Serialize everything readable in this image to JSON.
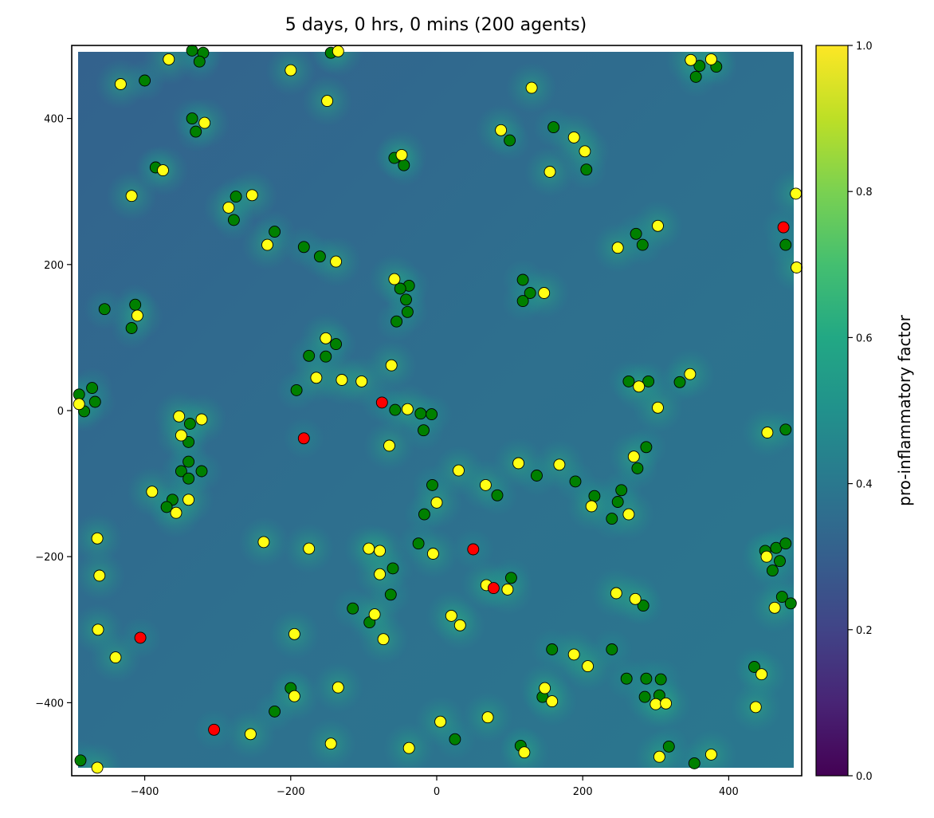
{
  "chart_data": {
    "type": "scatter",
    "title": "5 days, 0 hrs, 0 mins (200 agents)",
    "xlabel": "",
    "ylabel": "",
    "xlim": [
      -500,
      500
    ],
    "ylim": [
      -500,
      500
    ],
    "xticks": [
      -400,
      -200,
      0,
      200,
      400
    ],
    "yticks": [
      -400,
      -200,
      0,
      200,
      400
    ],
    "xtick_labels": [
      "−400",
      "−200",
      "0",
      "200",
      "400"
    ],
    "ytick_labels": [
      "−400",
      "−200",
      "0",
      "200",
      "400"
    ],
    "grid": false,
    "background": "pro-inflammatory factor field (viridis), mostly 0.3-0.5",
    "colorbar": {
      "label": "pro-inflammatory factor",
      "range": [
        0.0,
        1.0
      ],
      "ticks": [
        0.0,
        0.2,
        0.4,
        0.6,
        0.8,
        1.0
      ],
      "tick_labels": [
        "0.0",
        "0.2",
        "0.4",
        "0.6",
        "0.8",
        "1.0"
      ],
      "colormap": "viridis"
    },
    "colors": {
      "green": "#008000",
      "yellow": "#ffff14",
      "red": "#ff0000"
    },
    "series": [
      {
        "color": "green",
        "points": [
          [
            -335,
            493
          ],
          [
            -320,
            490
          ],
          [
            -325,
            478
          ],
          [
            -145,
            490
          ],
          [
            -400,
            452
          ],
          [
            -335,
            400
          ],
          [
            -330,
            382
          ],
          [
            -385,
            333
          ],
          [
            -275,
            293
          ],
          [
            -278,
            261
          ],
          [
            -222,
            245
          ],
          [
            -182,
            224
          ],
          [
            -160,
            211
          ],
          [
            -58,
            346
          ],
          [
            -45,
            336
          ],
          [
            160,
            388
          ],
          [
            100,
            370
          ],
          [
            205,
            330
          ],
          [
            118,
            179
          ],
          [
            128,
            161
          ],
          [
            118,
            150
          ],
          [
            -38,
            171
          ],
          [
            -50,
            167
          ],
          [
            -42,
            152
          ],
          [
            -40,
            135
          ],
          [
            -55,
            122
          ],
          [
            -455,
            139
          ],
          [
            -413,
            145
          ],
          [
            -418,
            113
          ],
          [
            -175,
            75
          ],
          [
            -152,
            74
          ],
          [
            -138,
            91
          ],
          [
            -192,
            28
          ],
          [
            -472,
            31
          ],
          [
            -468,
            12
          ],
          [
            -490,
            22
          ],
          [
            -483,
            -1
          ],
          [
            -57,
            1
          ],
          [
            -22,
            -4
          ],
          [
            -7,
            -5
          ],
          [
            -18,
            -27
          ],
          [
            -338,
            -18
          ],
          [
            -340,
            -43
          ],
          [
            -340,
            -70
          ],
          [
            -350,
            -83
          ],
          [
            -340,
            -93
          ],
          [
            -362,
            -122
          ],
          [
            -370,
            -132
          ],
          [
            -322,
            -83
          ],
          [
            -6,
            -102
          ],
          [
            -17,
            -142
          ],
          [
            137,
            -89
          ],
          [
            190,
            -97
          ],
          [
            83,
            -116
          ],
          [
            216,
            -117
          ],
          [
            253,
            -109
          ],
          [
            248,
            -125
          ],
          [
            240,
            -148
          ],
          [
            263,
            40
          ],
          [
            290,
            40
          ],
          [
            333,
            39
          ],
          [
            287,
            -50
          ],
          [
            275,
            -79
          ],
          [
            478,
            -26
          ],
          [
            -60,
            -216
          ],
          [
            -63,
            -252
          ],
          [
            -25,
            -182
          ],
          [
            -115,
            -271
          ],
          [
            -92,
            -290
          ],
          [
            102,
            -229
          ],
          [
            -200,
            -380
          ],
          [
            -222,
            -412
          ],
          [
            158,
            -327
          ],
          [
            240,
            -327
          ],
          [
            260,
            -367
          ],
          [
            287,
            -367
          ],
          [
            307,
            -368
          ],
          [
            285,
            -392
          ],
          [
            305,
            -390
          ],
          [
            145,
            -392
          ],
          [
            283,
            -267
          ],
          [
            450,
            -192
          ],
          [
            465,
            -188
          ],
          [
            460,
            -219
          ],
          [
            470,
            -206
          ],
          [
            478,
            -182
          ],
          [
            473,
            -255
          ],
          [
            485,
            -264
          ],
          [
            435,
            -351
          ],
          [
            25,
            -450
          ],
          [
            115,
            -459
          ],
          [
            318,
            -460
          ],
          [
            353,
            -483
          ],
          [
            -488,
            -479
          ],
          [
            355,
            457
          ],
          [
            360,
            472
          ],
          [
            383,
            471
          ],
          [
            273,
            242
          ],
          [
            282,
            227
          ],
          [
            478,
            227
          ]
        ]
      },
      {
        "color": "yellow",
        "points": [
          [
            -367,
            481
          ],
          [
            -135,
            492
          ],
          [
            -433,
            447
          ],
          [
            -200,
            466
          ],
          [
            -150,
            424
          ],
          [
            130,
            442
          ],
          [
            -318,
            394
          ],
          [
            -375,
            329
          ],
          [
            -418,
            294
          ],
          [
            -285,
            278
          ],
          [
            -253,
            295
          ],
          [
            -232,
            227
          ],
          [
            -138,
            204
          ],
          [
            -48,
            350
          ],
          [
            88,
            384
          ],
          [
            188,
            374
          ],
          [
            203,
            355
          ],
          [
            155,
            327
          ],
          [
            147,
            161
          ],
          [
            -58,
            180
          ],
          [
            -410,
            130
          ],
          [
            -152,
            99
          ],
          [
            -165,
            45
          ],
          [
            -130,
            42
          ],
          [
            -103,
            40
          ],
          [
            -62,
            62
          ],
          [
            -40,
            2
          ],
          [
            -490,
            9
          ],
          [
            -353,
            -8
          ],
          [
            -322,
            -12
          ],
          [
            -350,
            -34
          ],
          [
            -357,
            -140
          ],
          [
            -340,
            -122
          ],
          [
            -390,
            -111
          ],
          [
            -65,
            -48
          ],
          [
            30,
            -82
          ],
          [
            112,
            -72
          ],
          [
            168,
            -74
          ],
          [
            67,
            -102
          ],
          [
            0,
            -126
          ],
          [
            212,
            -131
          ],
          [
            263,
            -142
          ],
          [
            270,
            -63
          ],
          [
            277,
            33
          ],
          [
            303,
            4
          ],
          [
            347,
            50
          ],
          [
            453,
            -30
          ],
          [
            -465,
            -175
          ],
          [
            -462,
            -226
          ],
          [
            -237,
            -180
          ],
          [
            -175,
            -189
          ],
          [
            -93,
            -189
          ],
          [
            -78,
            -192
          ],
          [
            -78,
            -224
          ],
          [
            -5,
            -196
          ],
          [
            68,
            -239
          ],
          [
            97,
            -245
          ],
          [
            -85,
            -279
          ],
          [
            -73,
            -313
          ],
          [
            -195,
            -306
          ],
          [
            -464,
            -300
          ],
          [
            -440,
            -338
          ],
          [
            -195,
            -391
          ],
          [
            -135,
            -379
          ],
          [
            20,
            -281
          ],
          [
            32,
            -294
          ],
          [
            246,
            -250
          ],
          [
            272,
            -258
          ],
          [
            188,
            -334
          ],
          [
            207,
            -350
          ],
          [
            148,
            -380
          ],
          [
            158,
            -398
          ],
          [
            300,
            -402
          ],
          [
            314,
            -401
          ],
          [
            -255,
            -443
          ],
          [
            -145,
            -456
          ],
          [
            5,
            -426
          ],
          [
            70,
            -420
          ],
          [
            120,
            -468
          ],
          [
            305,
            -474
          ],
          [
            376,
            -471
          ],
          [
            -38,
            -462
          ],
          [
            -465,
            -489
          ],
          [
            437,
            -406
          ],
          [
            445,
            -361
          ],
          [
            452,
            -200
          ],
          [
            463,
            -270
          ],
          [
            348,
            480
          ],
          [
            376,
            481
          ],
          [
            248,
            223
          ],
          [
            303,
            253
          ],
          [
            492,
            297
          ],
          [
            493,
            196
          ]
        ]
      },
      {
        "color": "red",
        "points": [
          [
            -75,
            11
          ],
          [
            -182,
            -38
          ],
          [
            -406,
            -311
          ],
          [
            -305,
            -437
          ],
          [
            50,
            -190
          ],
          [
            78,
            -243
          ],
          [
            475,
            251
          ]
        ]
      }
    ]
  }
}
